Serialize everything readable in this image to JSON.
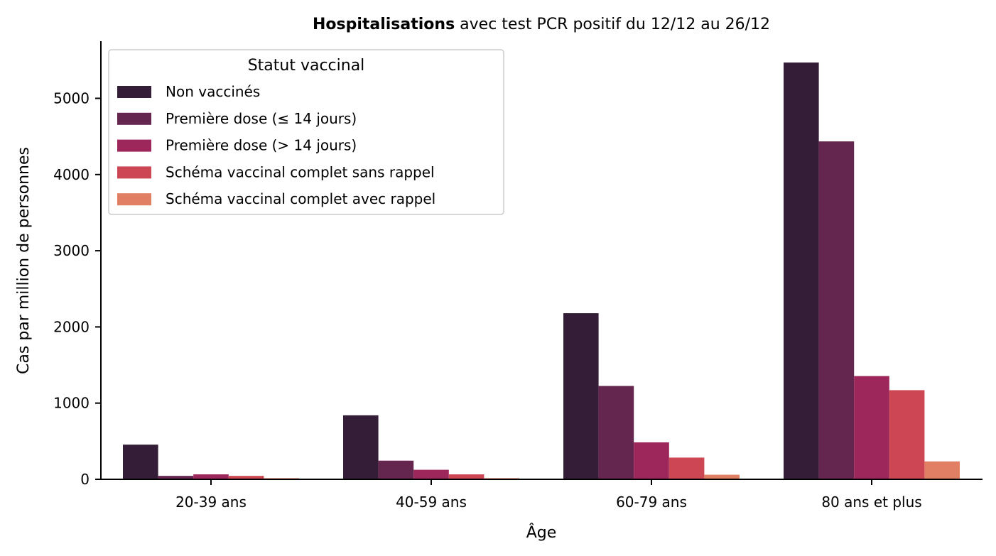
{
  "chart_data": {
    "type": "bar",
    "title_bold": "Hospitalisations",
    "title_rest": " avec test PCR positif du 12/12 au 26/12",
    "xlabel": "Âge",
    "ylabel": "Cas par million de personnes",
    "ylim": [
      0,
      5750
    ],
    "yticks": [
      0,
      1000,
      2000,
      3000,
      4000,
      5000
    ],
    "categories": [
      "20-39 ans",
      "40-59 ans",
      "60-79 ans",
      "80 ans et plus"
    ],
    "legend_title": "Statut vaccinal",
    "legend_position": "top-left",
    "grid": false,
    "series": [
      {
        "name": "Non vaccinés",
        "color": "#341d37",
        "values": [
          455,
          840,
          2180,
          5470
        ]
      },
      {
        "name": "Première dose (≤ 14 jours)",
        "color": "#64264e",
        "values": [
          45,
          245,
          1225,
          4435
        ]
      },
      {
        "name": "Première dose (> 14 jours)",
        "color": "#9d275a",
        "values": [
          65,
          125,
          485,
          1355
        ]
      },
      {
        "name": "Schéma vaccinal complet sans rappel",
        "color": "#cc4753",
        "values": [
          45,
          65,
          285,
          1170
        ]
      },
      {
        "name": "Schéma vaccinal complet avec rappel",
        "color": "#e07f64",
        "values": [
          15,
          15,
          60,
          235
        ]
      }
    ]
  }
}
